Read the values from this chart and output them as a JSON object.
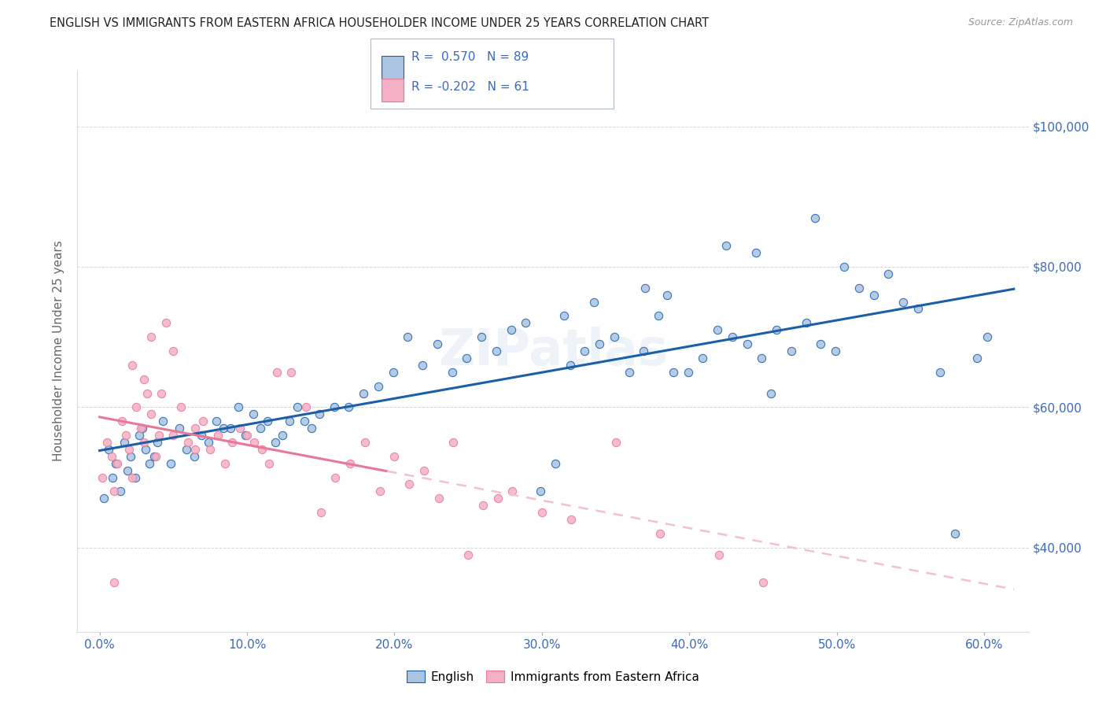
{
  "title": "ENGLISH VS IMMIGRANTS FROM EASTERN AFRICA HOUSEHOLDER INCOME UNDER 25 YEARS CORRELATION CHART",
  "source": "Source: ZipAtlas.com",
  "ylabel": "Householder Income Under 25 years",
  "xlabel_ticks": [
    "0.0%",
    "10.0%",
    "20.0%",
    "30.0%",
    "40.0%",
    "50.0%",
    "60.0%"
  ],
  "xlabel_vals": [
    0.0,
    10.0,
    20.0,
    30.0,
    40.0,
    50.0,
    60.0
  ],
  "ylabel_ticks": [
    "$40,000",
    "$60,000",
    "$80,000",
    "$100,000"
  ],
  "ylabel_vals": [
    40000,
    60000,
    80000,
    100000
  ],
  "ylim": [
    28000,
    108000
  ],
  "xlim": [
    -1.5,
    63.0
  ],
  "R_english": 0.57,
  "N_english": 89,
  "R_immigrant": -0.202,
  "N_immigrant": 61,
  "english_color": "#aac4e2",
  "immigrant_color": "#f5afc5",
  "english_line_color": "#1a5fa8",
  "immigrant_line_color": "#e8789a",
  "immigrant_dash_color": "#f2c0d0",
  "watermark": "ZIPatlas",
  "background_color": "#ffffff",
  "grid_color": "#cccccc",
  "title_color": "#222222",
  "tick_color": "#3a6abf",
  "english_scatter": [
    [
      0.3,
      47000
    ],
    [
      0.6,
      54000
    ],
    [
      0.9,
      50000
    ],
    [
      1.1,
      52000
    ],
    [
      1.4,
      48000
    ],
    [
      1.7,
      55000
    ],
    [
      1.9,
      51000
    ],
    [
      2.1,
      53000
    ],
    [
      2.4,
      50000
    ],
    [
      2.7,
      56000
    ],
    [
      2.9,
      57000
    ],
    [
      3.1,
      54000
    ],
    [
      3.4,
      52000
    ],
    [
      3.7,
      53000
    ],
    [
      3.9,
      55000
    ],
    [
      4.3,
      58000
    ],
    [
      4.8,
      52000
    ],
    [
      5.4,
      57000
    ],
    [
      5.9,
      54000
    ],
    [
      6.4,
      53000
    ],
    [
      6.9,
      56000
    ],
    [
      7.4,
      55000
    ],
    [
      7.9,
      58000
    ],
    [
      8.4,
      57000
    ],
    [
      8.9,
      57000
    ],
    [
      9.4,
      60000
    ],
    [
      9.9,
      56000
    ],
    [
      10.4,
      59000
    ],
    [
      10.9,
      57000
    ],
    [
      11.4,
      58000
    ],
    [
      11.9,
      55000
    ],
    [
      12.4,
      56000
    ],
    [
      12.9,
      58000
    ],
    [
      13.4,
      60000
    ],
    [
      13.9,
      58000
    ],
    [
      14.4,
      57000
    ],
    [
      14.9,
      59000
    ],
    [
      15.9,
      60000
    ],
    [
      16.9,
      60000
    ],
    [
      17.9,
      62000
    ],
    [
      18.9,
      63000
    ],
    [
      19.9,
      65000
    ],
    [
      20.9,
      70000
    ],
    [
      21.9,
      66000
    ],
    [
      22.9,
      69000
    ],
    [
      23.9,
      65000
    ],
    [
      24.9,
      67000
    ],
    [
      25.9,
      70000
    ],
    [
      26.9,
      68000
    ],
    [
      27.9,
      71000
    ],
    [
      28.9,
      72000
    ],
    [
      29.9,
      48000
    ],
    [
      30.9,
      52000
    ],
    [
      31.9,
      66000
    ],
    [
      32.9,
      68000
    ],
    [
      33.9,
      69000
    ],
    [
      34.9,
      70000
    ],
    [
      35.9,
      65000
    ],
    [
      36.9,
      68000
    ],
    [
      37.9,
      73000
    ],
    [
      38.9,
      65000
    ],
    [
      39.9,
      65000
    ],
    [
      40.9,
      67000
    ],
    [
      41.9,
      71000
    ],
    [
      42.9,
      70000
    ],
    [
      43.9,
      69000
    ],
    [
      44.9,
      67000
    ],
    [
      45.9,
      71000
    ],
    [
      46.9,
      68000
    ],
    [
      47.9,
      72000
    ],
    [
      48.9,
      69000
    ],
    [
      49.9,
      68000
    ],
    [
      50.5,
      80000
    ],
    [
      51.5,
      77000
    ],
    [
      52.5,
      76000
    ],
    [
      53.5,
      79000
    ],
    [
      54.5,
      75000
    ],
    [
      55.5,
      74000
    ],
    [
      57.0,
      65000
    ],
    [
      58.0,
      42000
    ],
    [
      59.5,
      67000
    ],
    [
      60.2,
      70000
    ],
    [
      42.5,
      83000
    ],
    [
      44.5,
      82000
    ],
    [
      48.5,
      87000
    ],
    [
      38.5,
      76000
    ],
    [
      37.0,
      77000
    ],
    [
      33.5,
      75000
    ],
    [
      31.5,
      73000
    ],
    [
      45.5,
      62000
    ]
  ],
  "immigrant_scatter": [
    [
      0.2,
      50000
    ],
    [
      0.5,
      55000
    ],
    [
      0.8,
      53000
    ],
    [
      1.0,
      48000
    ],
    [
      1.2,
      52000
    ],
    [
      1.5,
      58000
    ],
    [
      1.8,
      56000
    ],
    [
      2.0,
      54000
    ],
    [
      2.2,
      50000
    ],
    [
      2.5,
      60000
    ],
    [
      2.8,
      57000
    ],
    [
      3.0,
      55000
    ],
    [
      3.2,
      62000
    ],
    [
      3.5,
      59000
    ],
    [
      3.8,
      53000
    ],
    [
      4.0,
      56000
    ],
    [
      4.5,
      72000
    ],
    [
      5.0,
      68000
    ],
    [
      5.5,
      60000
    ],
    [
      6.0,
      55000
    ],
    [
      6.5,
      57000
    ],
    [
      7.0,
      58000
    ],
    [
      7.5,
      54000
    ],
    [
      8.0,
      56000
    ],
    [
      8.5,
      52000
    ],
    [
      9.0,
      55000
    ],
    [
      9.5,
      57000
    ],
    [
      10.0,
      56000
    ],
    [
      10.5,
      55000
    ],
    [
      11.0,
      54000
    ],
    [
      11.5,
      52000
    ],
    [
      12.0,
      65000
    ],
    [
      13.0,
      65000
    ],
    [
      14.0,
      60000
    ],
    [
      15.0,
      45000
    ],
    [
      16.0,
      50000
    ],
    [
      17.0,
      52000
    ],
    [
      18.0,
      55000
    ],
    [
      19.0,
      48000
    ],
    [
      20.0,
      53000
    ],
    [
      21.0,
      49000
    ],
    [
      22.0,
      51000
    ],
    [
      23.0,
      47000
    ],
    [
      24.0,
      55000
    ],
    [
      25.0,
      39000
    ],
    [
      26.0,
      46000
    ],
    [
      27.0,
      47000
    ],
    [
      28.0,
      48000
    ],
    [
      30.0,
      45000
    ],
    [
      32.0,
      44000
    ],
    [
      35.0,
      55000
    ],
    [
      38.0,
      42000
    ],
    [
      42.0,
      39000
    ],
    [
      45.0,
      35000
    ],
    [
      2.2,
      66000
    ],
    [
      3.0,
      64000
    ],
    [
      3.5,
      70000
    ],
    [
      4.2,
      62000
    ],
    [
      5.0,
      56000
    ],
    [
      6.5,
      54000
    ],
    [
      1.0,
      35000
    ]
  ],
  "imm_line_solid_end": 19.5
}
